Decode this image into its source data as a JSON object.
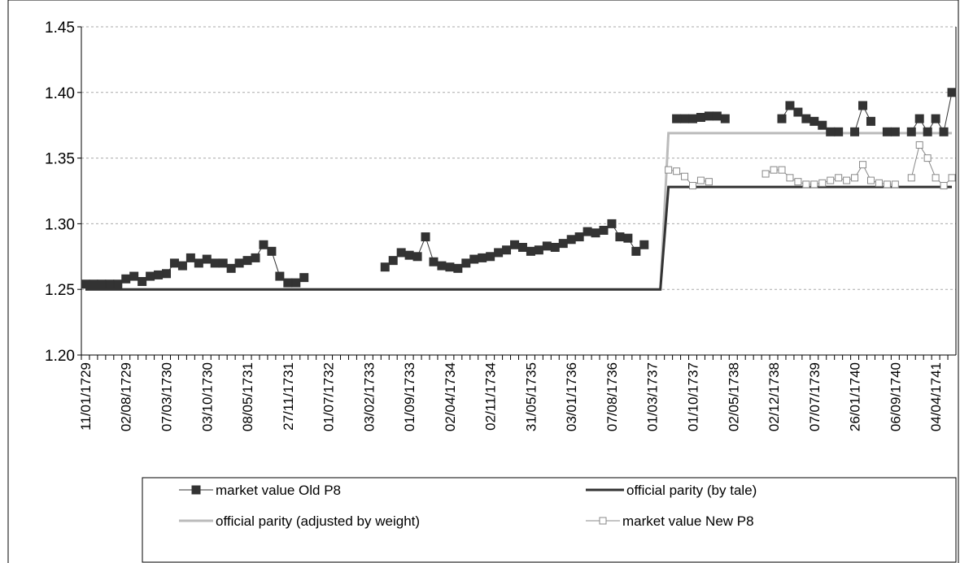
{
  "chart_data": {
    "type": "line",
    "categories": [
      "11/01/1729",
      null,
      null,
      null,
      null,
      "02/08/1729",
      null,
      null,
      null,
      null,
      "07/03/1730",
      null,
      null,
      null,
      null,
      "03/10/1730",
      null,
      null,
      null,
      null,
      "08/05/1731",
      null,
      null,
      null,
      null,
      "27/11/1731",
      null,
      null,
      null,
      null,
      "01/07/1732",
      null,
      null,
      null,
      null,
      "03/02/1733",
      null,
      null,
      null,
      null,
      "01/09/1733",
      null,
      null,
      null,
      null,
      "02/04/1734",
      null,
      null,
      null,
      null,
      "02/11/1734",
      null,
      null,
      null,
      null,
      "31/05/1735",
      null,
      null,
      null,
      null,
      "03/01/1736",
      null,
      null,
      null,
      null,
      "07/08/1736",
      null,
      null,
      null,
      null,
      "01/03/1737",
      null,
      null,
      null,
      null,
      "01/10/1737",
      null,
      null,
      null,
      null,
      "02/05/1738",
      null,
      null,
      null,
      null,
      "02/12/1738",
      null,
      null,
      null,
      null,
      "07/07/1739",
      null,
      null,
      null,
      null,
      "26/01/1740",
      null,
      null,
      null,
      null,
      "06/09/1740",
      null,
      null,
      null,
      null,
      "04/04/1741",
      null,
      null
    ],
    "series": [
      {
        "name": "market value Old P8",
        "color": "#333333",
        "marker": "filled-square",
        "values": [
          1.254,
          1.254,
          1.254,
          1.254,
          1.254,
          1.258,
          1.26,
          1.256,
          1.26,
          1.261,
          1.262,
          1.27,
          1.268,
          1.274,
          1.27,
          1.273,
          1.27,
          1.27,
          1.266,
          1.27,
          1.272,
          1.274,
          1.284,
          1.279,
          1.26,
          1.255,
          1.255,
          1.259,
          null,
          null,
          null,
          null,
          null,
          null,
          null,
          null,
          null,
          1.267,
          1.272,
          1.278,
          1.276,
          1.275,
          1.29,
          1.271,
          1.268,
          1.267,
          1.266,
          1.27,
          1.273,
          1.274,
          1.275,
          1.278,
          1.28,
          1.284,
          1.282,
          1.279,
          1.28,
          1.283,
          1.282,
          1.285,
          1.288,
          1.29,
          1.294,
          1.293,
          1.295,
          1.3,
          1.29,
          1.289,
          1.279,
          1.284,
          null,
          null,
          null,
          1.38,
          1.38,
          1.38,
          1.381,
          1.382,
          1.382,
          1.38,
          null,
          null,
          null,
          null,
          null,
          null,
          1.38,
          1.39,
          1.385,
          1.38,
          1.378,
          1.375,
          1.37,
          1.37,
          null,
          1.37,
          1.39,
          1.378,
          null,
          1.37,
          1.37,
          null,
          1.37,
          1.38,
          1.37,
          1.38,
          1.37,
          1.4
        ]
      },
      {
        "name": "official parity (by tale)",
        "color": "#333333",
        "marker": "none",
        "values": [
          1.25,
          1.25,
          1.25,
          1.25,
          1.25,
          1.25,
          1.25,
          1.25,
          1.25,
          1.25,
          1.25,
          1.25,
          1.25,
          1.25,
          1.25,
          1.25,
          1.25,
          1.25,
          1.25,
          1.25,
          1.25,
          1.25,
          1.25,
          1.25,
          1.25,
          1.25,
          1.25,
          1.25,
          1.25,
          1.25,
          1.25,
          1.25,
          1.25,
          1.25,
          1.25,
          1.25,
          1.25,
          1.25,
          1.25,
          1.25,
          1.25,
          1.25,
          1.25,
          1.25,
          1.25,
          1.25,
          1.25,
          1.25,
          1.25,
          1.25,
          1.25,
          1.25,
          1.25,
          1.25,
          1.25,
          1.25,
          1.25,
          1.25,
          1.25,
          1.25,
          1.25,
          1.25,
          1.25,
          1.25,
          1.25,
          1.25,
          1.25,
          1.25,
          1.25,
          1.25,
          1.25,
          1.25,
          1.328,
          1.328,
          1.328,
          1.328,
          1.328,
          1.328,
          1.328,
          1.328,
          1.328,
          1.328,
          1.328,
          1.328,
          1.328,
          1.328,
          1.328,
          1.328,
          1.328,
          1.328,
          1.328,
          1.328,
          1.328,
          1.328,
          1.328,
          1.328,
          1.328,
          1.328,
          1.328,
          1.328,
          1.328,
          1.328,
          1.328,
          1.328,
          1.328,
          1.328,
          1.328,
          1.328
        ]
      },
      {
        "name": "official parity (adjusted by weight)",
        "color": "#bbbbbb",
        "marker": "none",
        "values": [
          1.25,
          1.25,
          1.25,
          1.25,
          1.25,
          1.25,
          1.25,
          1.25,
          1.25,
          1.25,
          1.25,
          1.25,
          1.25,
          1.25,
          1.25,
          1.25,
          1.25,
          1.25,
          1.25,
          1.25,
          1.25,
          1.25,
          1.25,
          1.25,
          1.25,
          1.25,
          1.25,
          1.25,
          1.25,
          1.25,
          1.25,
          1.25,
          1.25,
          1.25,
          1.25,
          1.25,
          1.25,
          1.25,
          1.25,
          1.25,
          1.25,
          1.25,
          1.25,
          1.25,
          1.25,
          1.25,
          1.25,
          1.25,
          1.25,
          1.25,
          1.25,
          1.25,
          1.25,
          1.25,
          1.25,
          1.25,
          1.25,
          1.25,
          1.25,
          1.25,
          1.25,
          1.25,
          1.25,
          1.25,
          1.25,
          1.25,
          1.25,
          1.25,
          1.25,
          1.25,
          1.25,
          1.25,
          1.369,
          1.369,
          1.369,
          1.369,
          1.369,
          1.369,
          1.369,
          1.369,
          1.369,
          1.369,
          1.369,
          1.369,
          1.369,
          1.369,
          1.369,
          1.369,
          1.369,
          1.369,
          1.369,
          1.369,
          1.369,
          1.369,
          1.369,
          1.369,
          1.369,
          1.369,
          1.369,
          1.369,
          1.369,
          1.369,
          1.369,
          1.369,
          1.369,
          1.369,
          1.369,
          1.369
        ]
      },
      {
        "name": "market value New P8",
        "color": "#888888",
        "marker": "open-square",
        "values": [
          null,
          null,
          null,
          null,
          null,
          null,
          null,
          null,
          null,
          null,
          null,
          null,
          null,
          null,
          null,
          null,
          null,
          null,
          null,
          null,
          null,
          null,
          null,
          null,
          null,
          null,
          null,
          null,
          null,
          null,
          null,
          null,
          null,
          null,
          null,
          null,
          null,
          null,
          null,
          null,
          null,
          null,
          null,
          null,
          null,
          null,
          null,
          null,
          null,
          null,
          null,
          null,
          null,
          null,
          null,
          null,
          null,
          null,
          null,
          null,
          null,
          null,
          null,
          null,
          null,
          null,
          null,
          null,
          null,
          null,
          null,
          null,
          1.341,
          1.34,
          1.336,
          1.329,
          1.333,
          1.332,
          null,
          null,
          null,
          null,
          null,
          null,
          1.338,
          1.341,
          1.341,
          1.335,
          1.332,
          1.33,
          1.33,
          1.331,
          1.333,
          1.335,
          1.333,
          1.335,
          1.345,
          1.333,
          1.331,
          1.33,
          1.33,
          null,
          1.335,
          1.36,
          1.35,
          1.335,
          1.329,
          1.335
        ]
      }
    ],
    "ylim": [
      1.2,
      1.45
    ],
    "yticks": [
      {
        "value": 1.2,
        "label": "1.20"
      },
      1.25,
      {
        "value": 1.3,
        "label": "1.30"
      },
      1.35,
      {
        "value": 1.4,
        "label": "1.40"
      },
      1.45
    ],
    "grid": true,
    "legend": "bottom"
  }
}
